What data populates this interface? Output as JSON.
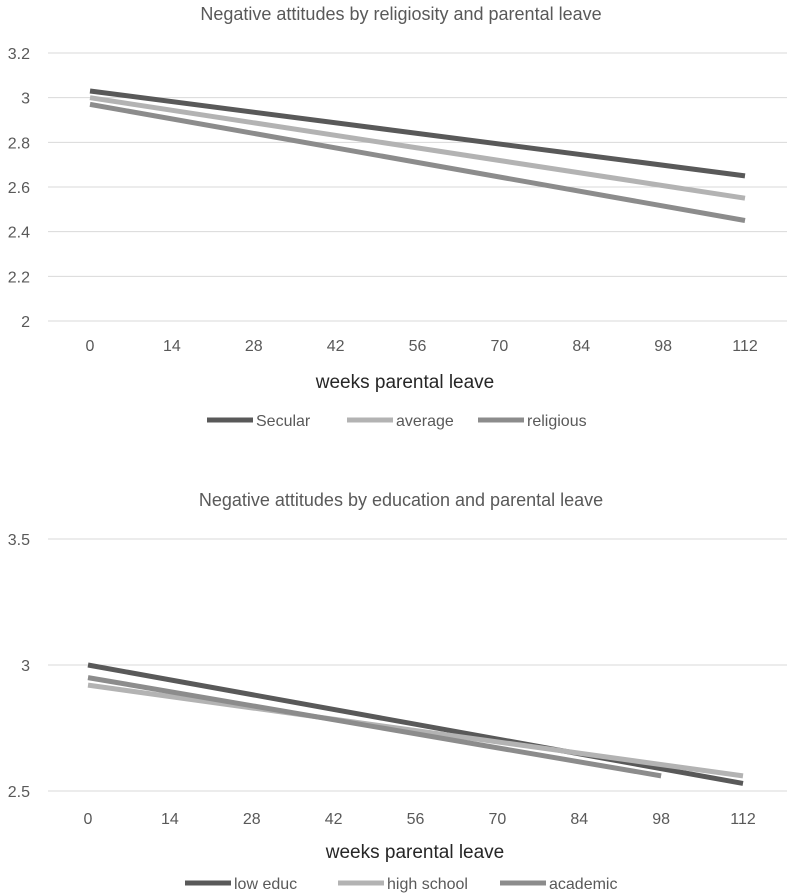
{
  "chart_data": [
    {
      "type": "line",
      "title": "Negative attitudes by religiosity and parental leave",
      "xlabel": "weeks parental  leave",
      "ylabel": "",
      "categories": [
        "0",
        "14",
        "28",
        "42",
        "56",
        "70",
        "84",
        "98",
        "112"
      ],
      "y_ticks": [
        "2",
        "2.2",
        "2.4",
        "2.6",
        "2.8",
        "3",
        "3.2"
      ],
      "ylim": [
        2,
        3.2
      ],
      "grid": true,
      "legend_position": "bottom",
      "series": [
        {
          "name": "Secular",
          "color": "#595959",
          "x": [
            0,
            112
          ],
          "values": [
            3.03,
            2.65
          ]
        },
        {
          "name": "average",
          "color": "#b3b3b3",
          "x": [
            0,
            112
          ],
          "values": [
            3.0,
            2.55
          ]
        },
        {
          "name": "religious",
          "color": "#8c8c8c",
          "x": [
            0,
            112
          ],
          "values": [
            2.97,
            2.45
          ]
        }
      ]
    },
    {
      "type": "line",
      "title": "Negative attitudes by education and parental leave",
      "xlabel": "weeks parental leave",
      "ylabel": "",
      "categories": [
        "0",
        "14",
        "28",
        "42",
        "56",
        "70",
        "84",
        "98",
        "112"
      ],
      "y_ticks": [
        "2.5",
        "3",
        "3.5"
      ],
      "ylim": [
        2.5,
        3.5
      ],
      "grid": true,
      "legend_position": "bottom",
      "series": [
        {
          "name": "low educ",
          "color": "#595959",
          "x": [
            0,
            112
          ],
          "values": [
            3.0,
            2.53
          ]
        },
        {
          "name": "high school",
          "color": "#b3b3b3",
          "x": [
            0,
            112
          ],
          "values": [
            2.92,
            2.56
          ]
        },
        {
          "name": "academic",
          "color": "#8c8c8c",
          "x": [
            0,
            98
          ],
          "values": [
            2.95,
            2.56
          ]
        }
      ]
    }
  ]
}
